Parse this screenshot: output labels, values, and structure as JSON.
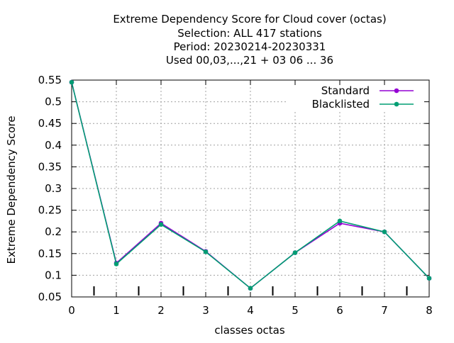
{
  "chart_data": {
    "type": "line",
    "title_lines": [
      "Extreme Dependency Score  for Cloud cover (octas)",
      "Selection: ALL     417 stations",
      "Period: 20230214-20230331",
      "Used  00,03,...,21  + 03 06 ... 36"
    ],
    "xlabel": "classes octas",
    "ylabel": "Extreme Dependency Score",
    "x": [
      0,
      1,
      2,
      3,
      4,
      5,
      6,
      7,
      8
    ],
    "xlim": [
      0,
      8
    ],
    "ylim": [
      0.05,
      0.55
    ],
    "xticks": [
      "0",
      "1",
      "2",
      "3",
      "4",
      "5",
      "6",
      "7",
      "8"
    ],
    "yticks": [
      "0.05",
      "0.1",
      "0.15",
      "0.2",
      "0.25",
      "0.3",
      "0.35",
      "0.4",
      "0.45",
      "0.5",
      "0.55"
    ],
    "ytick_values": [
      0.05,
      0.1,
      0.15,
      0.2,
      0.25,
      0.3,
      0.35,
      0.4,
      0.45,
      0.5,
      0.55
    ],
    "grid": true,
    "legend_position": "top-right",
    "series": [
      {
        "name": "Standard",
        "color": "#9400d3",
        "values": [
          0.545,
          0.128,
          0.22,
          0.155,
          0.07,
          0.152,
          0.22,
          0.2,
          0.093
        ]
      },
      {
        "name": "Blacklisted",
        "color": "#009e73",
        "values": [
          0.545,
          0.126,
          0.217,
          0.154,
          0.07,
          0.152,
          0.225,
          0.2,
          0.093
        ]
      }
    ]
  }
}
